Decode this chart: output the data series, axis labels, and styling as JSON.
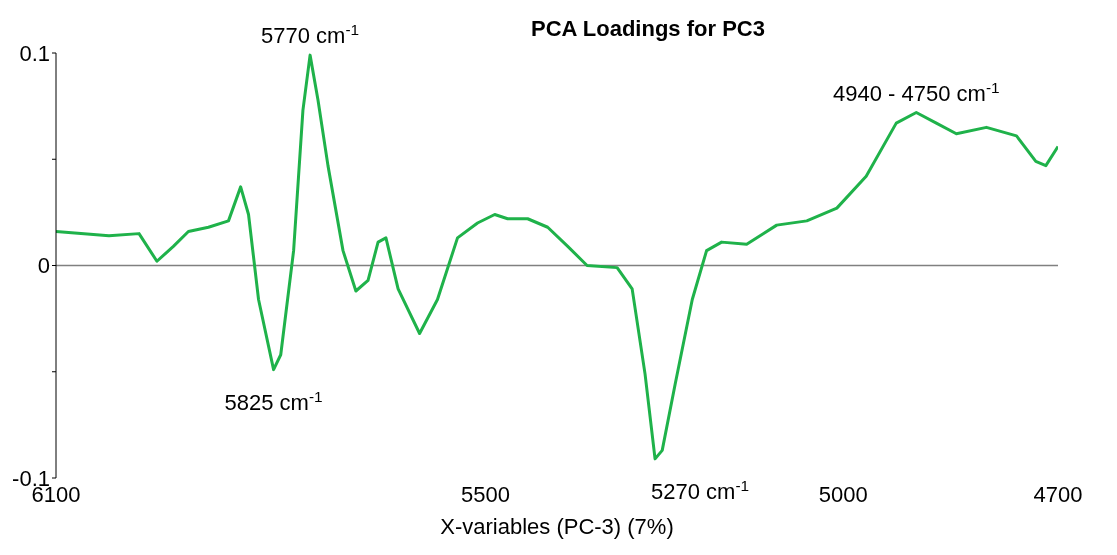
{
  "chart_data": {
    "type": "line",
    "title": "PCA Loadings for PC3",
    "xlabel": "X-variables (PC-3) (7%)",
    "x": [
      6100,
      6026,
      5984,
      5959,
      5936,
      5915,
      5887,
      5859,
      5842,
      5831,
      5817,
      5796,
      5786,
      5768,
      5755,
      5745,
      5734,
      5720,
      5699,
      5681,
      5664,
      5650,
      5639,
      5622,
      5592,
      5567,
      5539,
      5511,
      5487,
      5469,
      5441,
      5413,
      5385,
      5358,
      5316,
      5295,
      5277,
      5263,
      5253,
      5235,
      5211,
      5191,
      5170,
      5135,
      5093,
      5051,
      5009,
      4968,
      4926,
      4898,
      4870,
      4842,
      4800,
      4758,
      4731,
      4717,
      4700
    ],
    "series": [
      {
        "color": "#1fb24a",
        "values": [
          0.016,
          0.014,
          0.015,
          0.002,
          0.009,
          0.016,
          0.018,
          0.021,
          0.037,
          0.024,
          -0.016,
          -0.049,
          -0.042,
          0.007,
          0.073,
          0.099,
          0.078,
          0.047,
          0.007,
          -0.012,
          -0.007,
          0.011,
          0.013,
          -0.011,
          -0.032,
          -0.016,
          0.013,
          0.02,
          0.024,
          0.022,
          0.022,
          0.018,
          0.009,
          0,
          -0.001,
          -0.011,
          -0.051,
          -0.091,
          -0.087,
          -0.056,
          -0.016,
          0.007,
          0.011,
          0.01,
          0.019,
          0.021,
          0.027,
          0.042,
          0.067,
          0.072,
          0.067,
          0.062,
          0.065,
          0.061,
          0.049,
          0.047,
          0.056
        ]
      }
    ],
    "xlim": [
      6100,
      4700
    ],
    "xticks": [
      6100,
      5500,
      5000,
      4700
    ],
    "ylim": [
      -0.1,
      0.1
    ],
    "yticks": [
      -0.1,
      {
        "value": -0.05,
        "label": null
      },
      0,
      {
        "value": 0.05,
        "label": null
      },
      0.1
    ],
    "ref_lines": [
      {
        "axis": "y",
        "value": 0,
        "color": "#808080"
      }
    ],
    "annotations": [
      {
        "text": "5770 cm$^{-1}$",
        "x": 5745,
        "y": 0.099
      },
      {
        "text": "5825 cm$^{-1}$",
        "x": 5796,
        "y": -0.049
      },
      {
        "text": "5270 cm$^{-1}$",
        "x": 5263,
        "y": -0.091
      },
      {
        "text": "4940 - 4750 cm$^{-1}$",
        "x": 4898,
        "y": 0.072
      }
    ],
    "line_style": "solid",
    "marker": "none"
  }
}
